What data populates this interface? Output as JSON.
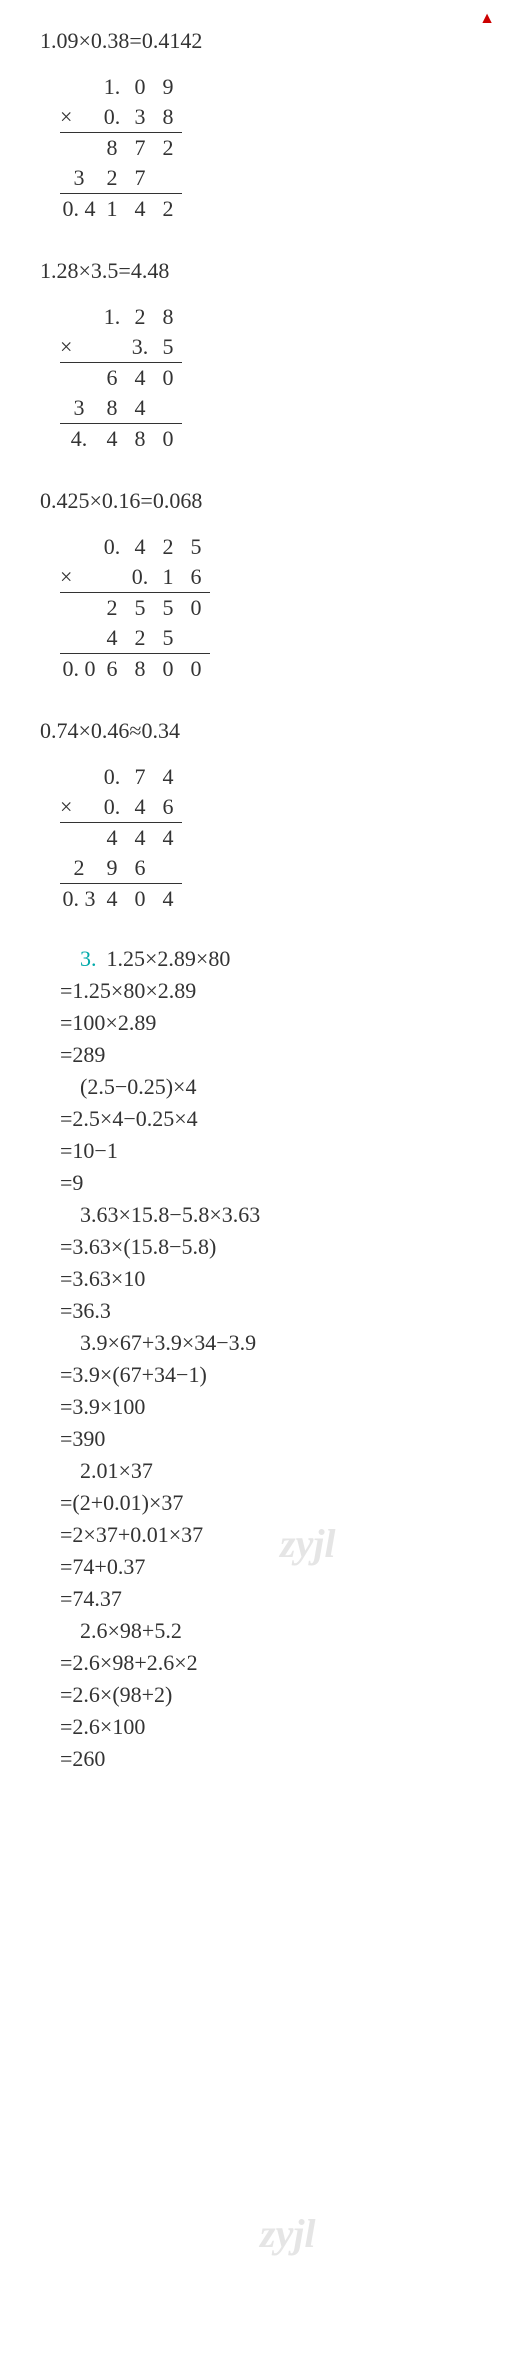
{
  "e1": {
    "eq": "1.09×0.38=0.4142",
    "m": [
      [
        "",
        "1.",
        "0",
        "9"
      ],
      [
        "×",
        "0.",
        "3",
        "8"
      ],
      [
        "",
        "8",
        "7",
        "2"
      ],
      [
        "3",
        "2",
        "7",
        ""
      ],
      [
        "0. 4",
        "1",
        "4",
        "2"
      ]
    ],
    "bl": [
      1,
      3
    ]
  },
  "e2": {
    "eq": "1.28×3.5=4.48",
    "m": [
      [
        "",
        "1.",
        "2",
        "8"
      ],
      [
        "×",
        "",
        "3.",
        "5"
      ],
      [
        "",
        "6",
        "4",
        "0"
      ],
      [
        "3",
        "8",
        "4",
        ""
      ],
      [
        "4.",
        "4",
        "8",
        "0"
      ]
    ],
    "bl": [
      1,
      3
    ]
  },
  "e3": {
    "eq": "0.425×0.16=0.068",
    "m": [
      [
        "",
        "0.",
        "4",
        "2",
        "5"
      ],
      [
        "×",
        "",
        "0.",
        "1",
        "6"
      ],
      [
        "",
        "2",
        "5",
        "5",
        "0"
      ],
      [
        "",
        "4",
        "2",
        "5",
        ""
      ],
      [
        "0. 0",
        "6",
        "8",
        "0",
        "0"
      ]
    ],
    "bl": [
      1,
      3
    ]
  },
  "e4": {
    "eq": "0.74×0.46≈0.34",
    "m": [
      [
        "",
        "0.",
        "7",
        "4"
      ],
      [
        "×",
        "0.",
        "4",
        "6"
      ],
      [
        "",
        "4",
        "4",
        "4"
      ],
      [
        "2",
        "9",
        "6",
        ""
      ],
      [
        "0. 3",
        "4",
        "0",
        "4"
      ]
    ],
    "bl": [
      1,
      3
    ]
  },
  "p3": "3.",
  "b1": {
    "h": "1.25×2.89×80",
    "s": [
      "=1.25×80×2.89",
      "=100×2.89",
      "=289"
    ]
  },
  "b2": {
    "h": "(2.5−0.25)×4",
    "s": [
      "=2.5×4−0.25×4",
      "=10−1",
      "=9"
    ]
  },
  "b3": {
    "h": "3.63×15.8−5.8×3.63",
    "s": [
      "=3.63×(15.8−5.8)",
      "=3.63×10",
      "=36.3"
    ]
  },
  "b4": {
    "h": "3.9×67+3.9×34−3.9",
    "s": [
      "=3.9×(67+34−1)",
      "=3.9×100",
      "=390"
    ]
  },
  "b5": {
    "h": "2.01×37",
    "s": [
      "=(2+0.01)×37",
      "=2×37+0.01×37",
      "=74+0.37",
      "=74.37"
    ]
  },
  "b6": {
    "h": "2.6×98+5.2",
    "s": [
      "=2.6×98+2.6×2",
      "=2.6×(98+2)",
      "=2.6×100",
      "=260"
    ]
  },
  "wm": "zyjl"
}
